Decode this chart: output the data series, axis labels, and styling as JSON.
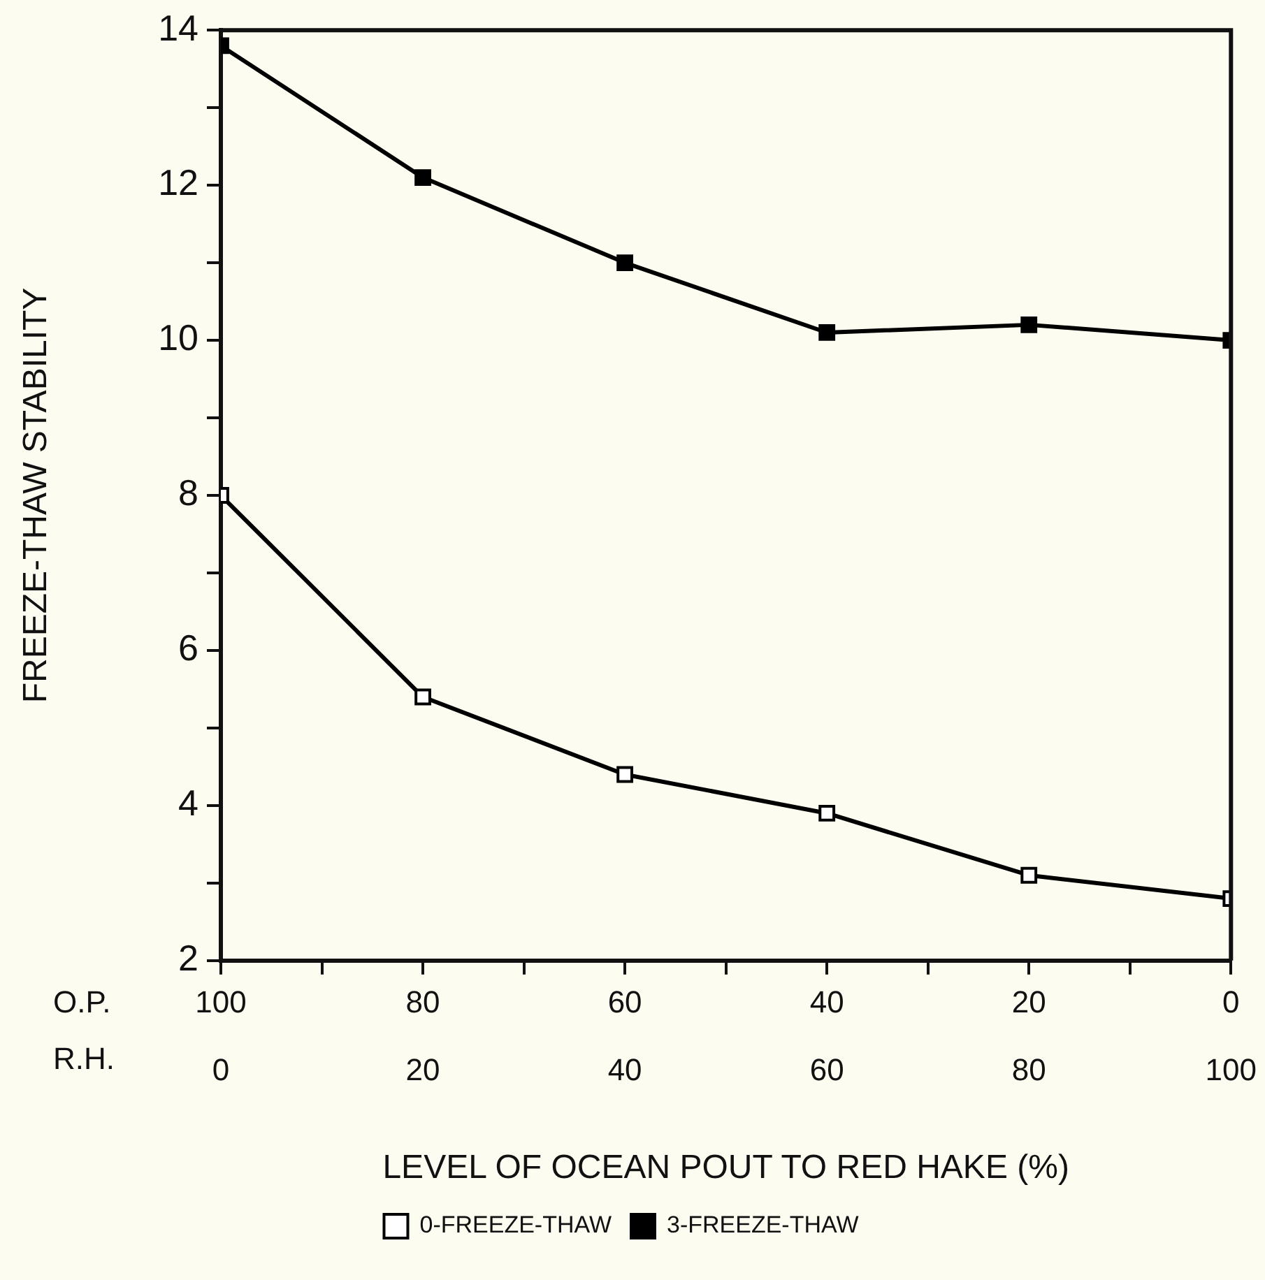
{
  "chart_data": {
    "type": "line",
    "ylabel": "FREEZE-THAW STABILITY",
    "xlabel": "LEVEL OF OCEAN POUT TO RED HAKE (%)",
    "x": [
      100,
      80,
      60,
      40,
      20,
      0
    ],
    "series": [
      {
        "name": "0-FREEZE-THAW",
        "color": "#000000",
        "values": [
          8.0,
          5.4,
          4.4,
          3.9,
          3.1,
          2.8
        ]
      },
      {
        "name": "3-FREEZE-THAW",
        "color": "#000000",
        "values": [
          13.8,
          12.1,
          11.0,
          10.1,
          10.2,
          10.0
        ]
      }
    ],
    "xlim": [
      100,
      0
    ],
    "xticks": [
      100,
      {
        "value": 90,
        "label": null
      },
      80,
      {
        "value": 70,
        "label": null
      },
      60,
      {
        "value": 50,
        "label": null
      },
      40,
      {
        "value": 30,
        "label": null
      },
      20,
      {
        "value": 10,
        "label": null
      },
      0
    ],
    "x2lim": [
      0,
      100
    ],
    "x2ticks": [
      0,
      20,
      40,
      60,
      80,
      100
    ],
    "ylim": [
      2,
      14
    ],
    "yticks": [
      2,
      {
        "value": 3,
        "label": null
      },
      4,
      {
        "value": 5,
        "label": null
      },
      6,
      {
        "value": 7,
        "label": null
      },
      8,
      {
        "value": 9,
        "label": null
      },
      10,
      {
        "value": 11,
        "label": null
      },
      12,
      {
        "value": 13,
        "label": null
      },
      14
    ],
    "annotations": [
      "O.P.",
      "R.H."
    ],
    "grid": false,
    "legend": "bottom",
    "marker": "square",
    "line_style": "solid"
  }
}
